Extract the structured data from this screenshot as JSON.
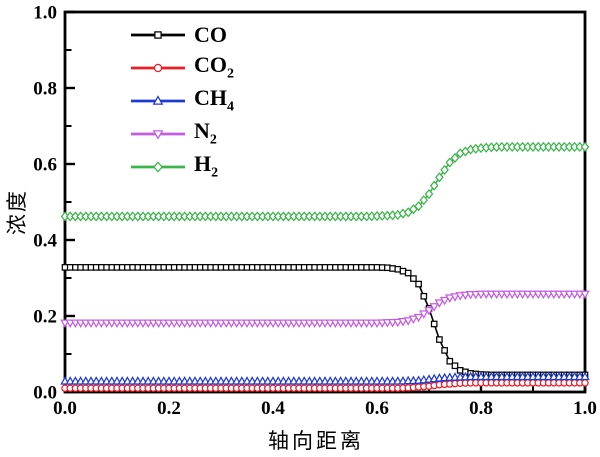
{
  "figure": {
    "background": "#ffffff",
    "frame_color": "#000000"
  },
  "chart_data": {
    "type": "line",
    "title": "",
    "xlabel": "轴向距离",
    "ylabel": "浓度",
    "xlim": [
      0.0,
      1.0
    ],
    "ylim": [
      0.0,
      1.0
    ],
    "grid": false,
    "legend_position": "upper-left-inside",
    "x_tick_labels": [
      "0.0",
      "0.2",
      "0.4",
      "0.6",
      "0.8",
      "1.0"
    ],
    "y_tick_labels": [
      "0.0",
      "0.2",
      "0.4",
      "0.6",
      "0.8",
      "1.0"
    ],
    "minor_tick_values": [
      0.1,
      0.3,
      0.5,
      0.7,
      0.9
    ],
    "x": [
      0.0,
      0.02,
      0.04,
      0.06,
      0.08,
      0.1,
      0.12,
      0.14,
      0.16,
      0.18,
      0.2,
      0.22,
      0.24,
      0.26,
      0.28,
      0.3,
      0.32,
      0.34,
      0.36,
      0.38,
      0.4,
      0.42,
      0.44,
      0.46,
      0.48,
      0.5,
      0.52,
      0.54,
      0.56,
      0.58,
      0.6,
      0.62,
      0.64,
      0.66,
      0.68,
      0.7,
      0.72,
      0.74,
      0.76,
      0.78,
      0.8,
      0.82,
      0.84,
      0.86,
      0.88,
      0.9,
      0.92,
      0.94,
      0.96,
      0.98,
      1.0
    ],
    "series": [
      {
        "name": "CO",
        "sub": "",
        "key": "co",
        "color": "#000000",
        "marker": "square",
        "values": [
          0.328,
          0.328,
          0.328,
          0.328,
          0.328,
          0.328,
          0.328,
          0.328,
          0.328,
          0.328,
          0.328,
          0.328,
          0.328,
          0.328,
          0.328,
          0.328,
          0.328,
          0.328,
          0.328,
          0.328,
          0.328,
          0.328,
          0.328,
          0.328,
          0.328,
          0.328,
          0.328,
          0.328,
          0.328,
          0.328,
          0.328,
          0.327,
          0.323,
          0.313,
          0.284,
          0.22,
          0.138,
          0.081,
          0.057,
          0.049,
          0.046,
          0.045,
          0.045,
          0.045,
          0.045,
          0.045,
          0.045,
          0.045,
          0.045,
          0.045,
          0.045
        ]
      },
      {
        "name": "CO",
        "sub": "2",
        "key": "co2",
        "color": "#ee1c25",
        "marker": "circle",
        "values": [
          0.01,
          0.01,
          0.01,
          0.01,
          0.01,
          0.01,
          0.01,
          0.01,
          0.01,
          0.01,
          0.01,
          0.01,
          0.01,
          0.01,
          0.01,
          0.01,
          0.01,
          0.01,
          0.01,
          0.01,
          0.01,
          0.01,
          0.01,
          0.01,
          0.01,
          0.01,
          0.01,
          0.01,
          0.01,
          0.01,
          0.01,
          0.01,
          0.01,
          0.011,
          0.013,
          0.015,
          0.019,
          0.021,
          0.023,
          0.024,
          0.024,
          0.024,
          0.024,
          0.024,
          0.024,
          0.024,
          0.024,
          0.024,
          0.024,
          0.024,
          0.024
        ]
      },
      {
        "name": "CH",
        "sub": "4",
        "key": "ch4",
        "color": "#1f3ad2",
        "marker": "triangle-up",
        "values": [
          0.028,
          0.028,
          0.028,
          0.028,
          0.028,
          0.028,
          0.028,
          0.028,
          0.028,
          0.028,
          0.028,
          0.028,
          0.028,
          0.028,
          0.028,
          0.028,
          0.028,
          0.028,
          0.028,
          0.028,
          0.028,
          0.028,
          0.028,
          0.028,
          0.028,
          0.028,
          0.028,
          0.028,
          0.028,
          0.028,
          0.028,
          0.028,
          0.028,
          0.029,
          0.03,
          0.033,
          0.036,
          0.038,
          0.039,
          0.04,
          0.04,
          0.04,
          0.04,
          0.04,
          0.04,
          0.04,
          0.04,
          0.04,
          0.04,
          0.04,
          0.04
        ]
      },
      {
        "name": "N",
        "sub": "2",
        "key": "n2",
        "color": "#c55be5",
        "marker": "triangle-down",
        "values": [
          0.182,
          0.182,
          0.182,
          0.182,
          0.182,
          0.182,
          0.182,
          0.182,
          0.182,
          0.182,
          0.182,
          0.182,
          0.182,
          0.182,
          0.182,
          0.182,
          0.182,
          0.182,
          0.182,
          0.182,
          0.182,
          0.182,
          0.182,
          0.182,
          0.182,
          0.182,
          0.182,
          0.182,
          0.182,
          0.182,
          0.182,
          0.183,
          0.184,
          0.188,
          0.197,
          0.215,
          0.235,
          0.248,
          0.254,
          0.257,
          0.258,
          0.258,
          0.258,
          0.258,
          0.258,
          0.258,
          0.258,
          0.258,
          0.258,
          0.258,
          0.258
        ]
      },
      {
        "name": "H",
        "sub": "2",
        "key": "h2",
        "color": "#3bb54a",
        "marker": "diamond",
        "values": [
          0.462,
          0.462,
          0.462,
          0.462,
          0.462,
          0.462,
          0.462,
          0.462,
          0.462,
          0.462,
          0.462,
          0.462,
          0.462,
          0.462,
          0.462,
          0.462,
          0.462,
          0.462,
          0.462,
          0.462,
          0.462,
          0.462,
          0.462,
          0.462,
          0.462,
          0.462,
          0.462,
          0.462,
          0.462,
          0.462,
          0.463,
          0.464,
          0.466,
          0.473,
          0.489,
          0.521,
          0.565,
          0.604,
          0.628,
          0.638,
          0.642,
          0.644,
          0.645,
          0.645,
          0.645,
          0.645,
          0.645,
          0.645,
          0.645,
          0.645,
          0.645
        ]
      }
    ]
  }
}
